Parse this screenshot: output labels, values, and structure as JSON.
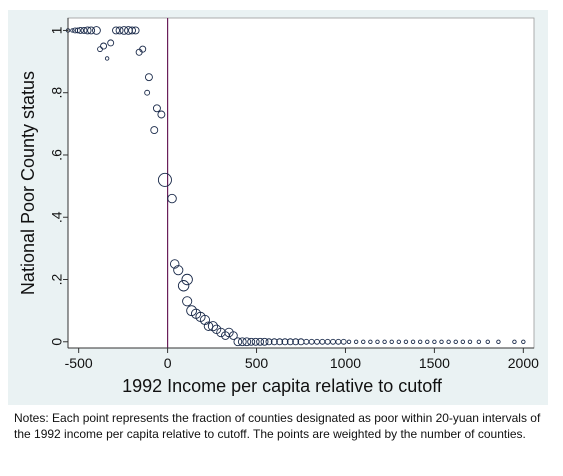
{
  "notes": "Notes: Each point represents the fraction of counties designated as poor within 20-yuan intervals of the 1992 income per capita relative to cutoff. The points are weighted by the number of counties.",
  "chart_data": {
    "type": "scatter",
    "xlabel": "1992 Income per capita relative to cutoff",
    "ylabel": "National Poor County status",
    "xlim": [
      -560,
      2060
    ],
    "ylim": [
      -0.02,
      1.04
    ],
    "x_ticks": [
      -500,
      0,
      500,
      1000,
      1500,
      2000
    ],
    "x_tick_labels": [
      "-500",
      "0",
      "500",
      "1000",
      "1500",
      "2000"
    ],
    "y_ticks": [
      0,
      0.2,
      0.4,
      0.6,
      0.8,
      1
    ],
    "y_tick_labels": [
      "0",
      ".2",
      ".4",
      ".6",
      ".8",
      "1"
    ],
    "cutoff_x": 0,
    "grid": false,
    "legend": false,
    "colors": {
      "plot_background": "#ffffff",
      "outer_background": "#eaf2f3",
      "marker": "#1a2a4a",
      "cutoff_line": "#6a1f5a"
    },
    "points": [
      {
        "x": -560,
        "y": 1,
        "w": 1
      },
      {
        "x": -535,
        "y": 1,
        "w": 1
      },
      {
        "x": -520,
        "y": 1,
        "w": 2
      },
      {
        "x": -505,
        "y": 1,
        "w": 2
      },
      {
        "x": -490,
        "y": 1,
        "w": 3
      },
      {
        "x": -470,
        "y": 1,
        "w": 3
      },
      {
        "x": -450,
        "y": 1,
        "w": 4
      },
      {
        "x": -430,
        "y": 1,
        "w": 4
      },
      {
        "x": -400,
        "y": 1,
        "w": 5
      },
      {
        "x": -380,
        "y": 0.94,
        "w": 2
      },
      {
        "x": -360,
        "y": 0.95,
        "w": 3
      },
      {
        "x": -340,
        "y": 0.91,
        "w": 1
      },
      {
        "x": -320,
        "y": 0.96,
        "w": 3
      },
      {
        "x": -290,
        "y": 1,
        "w": 4
      },
      {
        "x": -270,
        "y": 1,
        "w": 4
      },
      {
        "x": -245,
        "y": 1,
        "w": 5
      },
      {
        "x": -220,
        "y": 1,
        "w": 5
      },
      {
        "x": -200,
        "y": 1,
        "w": 4
      },
      {
        "x": -180,
        "y": 1,
        "w": 4
      },
      {
        "x": -160,
        "y": 0.93,
        "w": 3
      },
      {
        "x": -140,
        "y": 0.94,
        "w": 3
      },
      {
        "x": -105,
        "y": 0.85,
        "w": 4
      },
      {
        "x": -115,
        "y": 0.8,
        "w": 2
      },
      {
        "x": -60,
        "y": 0.75,
        "w": 4
      },
      {
        "x": -35,
        "y": 0.73,
        "w": 4
      },
      {
        "x": -75,
        "y": 0.68,
        "w": 4
      },
      {
        "x": -15,
        "y": 0.52,
        "w": 14
      },
      {
        "x": 25,
        "y": 0.46,
        "w": 6
      },
      {
        "x": 40,
        "y": 0.25,
        "w": 6
      },
      {
        "x": 60,
        "y": 0.23,
        "w": 7
      },
      {
        "x": 90,
        "y": 0.18,
        "w": 9
      },
      {
        "x": 110,
        "y": 0.2,
        "w": 9
      },
      {
        "x": 110,
        "y": 0.13,
        "w": 7
      },
      {
        "x": 135,
        "y": 0.1,
        "w": 8
      },
      {
        "x": 160,
        "y": 0.09,
        "w": 7
      },
      {
        "x": 185,
        "y": 0.08,
        "w": 7
      },
      {
        "x": 210,
        "y": 0.07,
        "w": 7
      },
      {
        "x": 230,
        "y": 0.05,
        "w": 6
      },
      {
        "x": 255,
        "y": 0.05,
        "w": 7
      },
      {
        "x": 275,
        "y": 0.04,
        "w": 6
      },
      {
        "x": 300,
        "y": 0.03,
        "w": 6
      },
      {
        "x": 325,
        "y": 0.02,
        "w": 5
      },
      {
        "x": 345,
        "y": 0.03,
        "w": 6
      },
      {
        "x": 370,
        "y": 0.02,
        "w": 5
      },
      {
        "x": 395,
        "y": 0,
        "w": 5
      },
      {
        "x": 420,
        "y": 0,
        "w": 5
      },
      {
        "x": 445,
        "y": 0,
        "w": 5
      },
      {
        "x": 470,
        "y": 0,
        "w": 4
      },
      {
        "x": 495,
        "y": 0,
        "w": 4
      },
      {
        "x": 520,
        "y": 0,
        "w": 4
      },
      {
        "x": 545,
        "y": 0,
        "w": 4
      },
      {
        "x": 570,
        "y": 0,
        "w": 3
      },
      {
        "x": 600,
        "y": 0,
        "w": 3
      },
      {
        "x": 630,
        "y": 0,
        "w": 3
      },
      {
        "x": 660,
        "y": 0,
        "w": 3
      },
      {
        "x": 690,
        "y": 0,
        "w": 3
      },
      {
        "x": 720,
        "y": 0,
        "w": 3
      },
      {
        "x": 750,
        "y": 0,
        "w": 3
      },
      {
        "x": 780,
        "y": 0,
        "w": 2
      },
      {
        "x": 810,
        "y": 0,
        "w": 2
      },
      {
        "x": 840,
        "y": 0,
        "w": 2
      },
      {
        "x": 870,
        "y": 0,
        "w": 2
      },
      {
        "x": 900,
        "y": 0,
        "w": 2
      },
      {
        "x": 930,
        "y": 0,
        "w": 2
      },
      {
        "x": 960,
        "y": 0,
        "w": 2
      },
      {
        "x": 990,
        "y": 0,
        "w": 2
      },
      {
        "x": 1020,
        "y": 0,
        "w": 1
      },
      {
        "x": 1060,
        "y": 0,
        "w": 1
      },
      {
        "x": 1100,
        "y": 0,
        "w": 1
      },
      {
        "x": 1140,
        "y": 0,
        "w": 1
      },
      {
        "x": 1180,
        "y": 0,
        "w": 1
      },
      {
        "x": 1220,
        "y": 0,
        "w": 1
      },
      {
        "x": 1260,
        "y": 0,
        "w": 1
      },
      {
        "x": 1300,
        "y": 0,
        "w": 1
      },
      {
        "x": 1340,
        "y": 0,
        "w": 1
      },
      {
        "x": 1380,
        "y": 0,
        "w": 1
      },
      {
        "x": 1420,
        "y": 0,
        "w": 1
      },
      {
        "x": 1460,
        "y": 0,
        "w": 1
      },
      {
        "x": 1500,
        "y": 0,
        "w": 1
      },
      {
        "x": 1540,
        "y": 0,
        "w": 1
      },
      {
        "x": 1580,
        "y": 0,
        "w": 1
      },
      {
        "x": 1620,
        "y": 0,
        "w": 1
      },
      {
        "x": 1660,
        "y": 0,
        "w": 1
      },
      {
        "x": 1700,
        "y": 0,
        "w": 1
      },
      {
        "x": 1750,
        "y": 0,
        "w": 1
      },
      {
        "x": 1800,
        "y": 0,
        "w": 1
      },
      {
        "x": 1860,
        "y": 0,
        "w": 1
      },
      {
        "x": 1950,
        "y": 0,
        "w": 1
      },
      {
        "x": 2000,
        "y": 0,
        "w": 1
      }
    ]
  }
}
